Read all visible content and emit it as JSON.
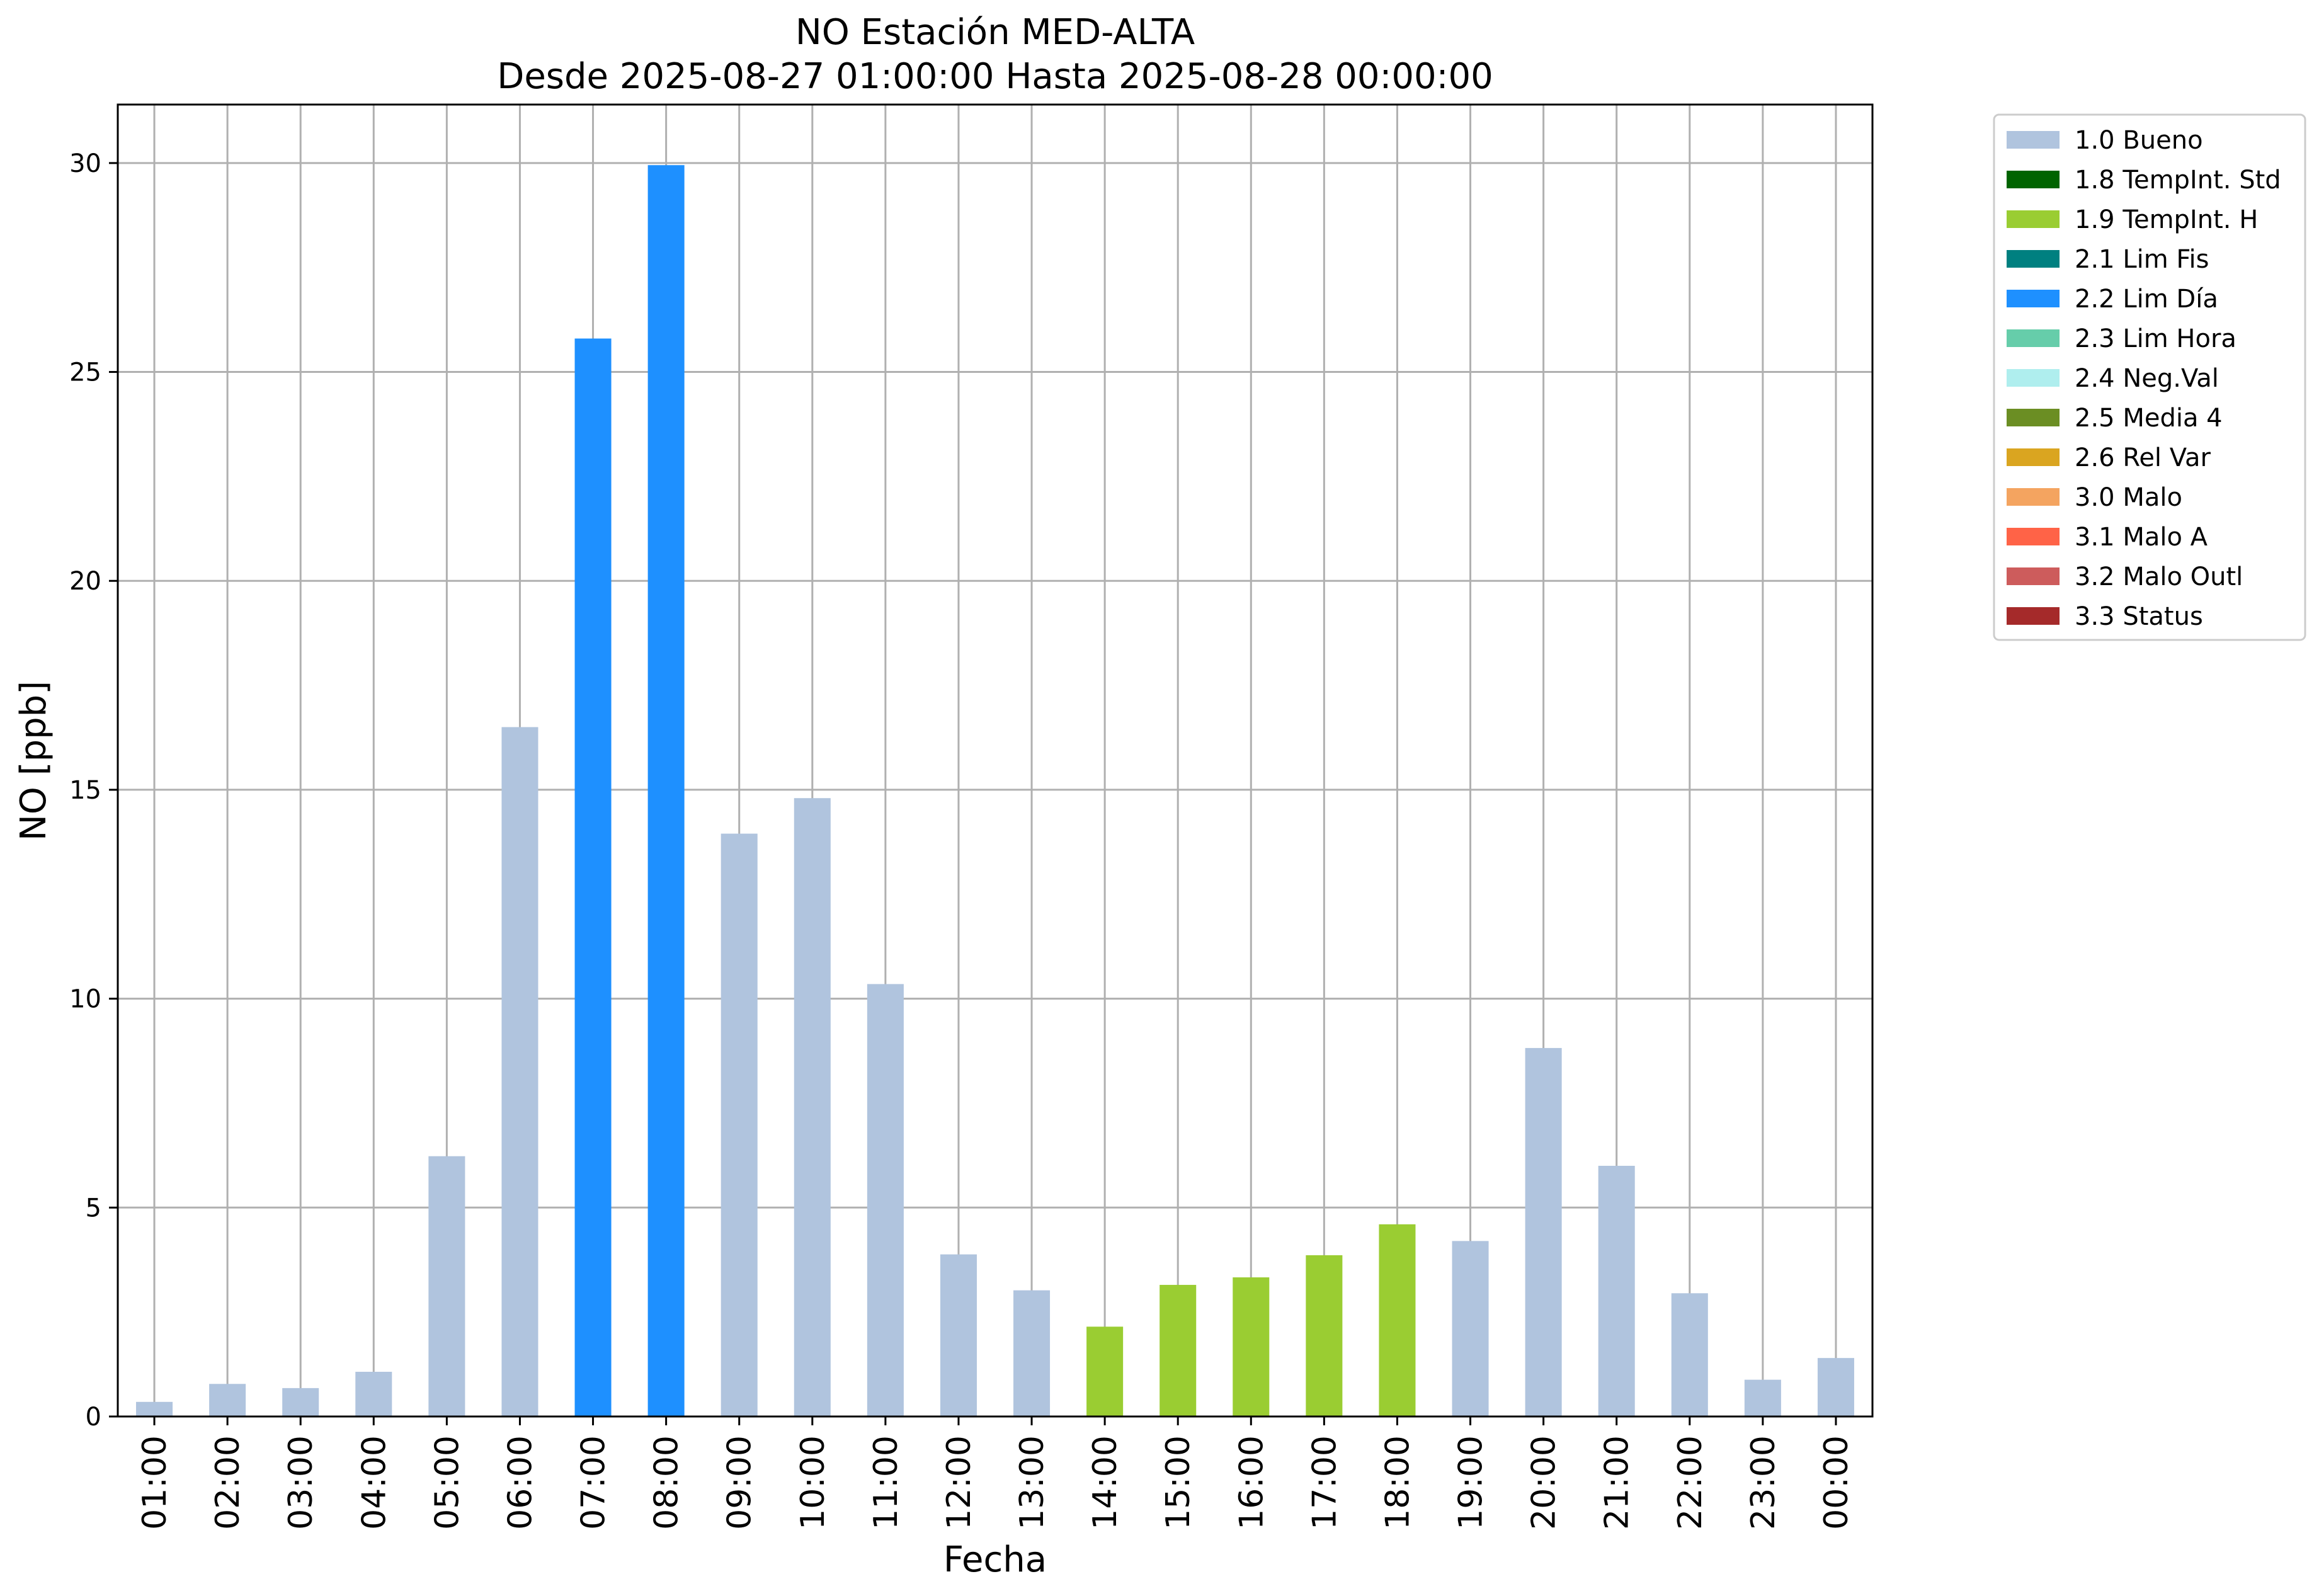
{
  "chart_data": {
    "type": "bar",
    "title_line1": "NO Estación MED-ALTA",
    "title_line2": "Desde 2025-08-27 01:00:00 Hasta 2025-08-28 00:00:00",
    "xlabel": "Fecha",
    "ylabel": "NO [ppb]",
    "ylim": [
      0,
      31.4
    ],
    "yticks": [
      0,
      5,
      10,
      15,
      20,
      25,
      30
    ],
    "grid": true,
    "legend_placement": "upper-right-outside",
    "categories": [
      "01:00",
      "02:00",
      "03:00",
      "04:00",
      "05:00",
      "06:00",
      "07:00",
      "08:00",
      "09:00",
      "10:00",
      "11:00",
      "12:00",
      "13:00",
      "14:00",
      "15:00",
      "16:00",
      "17:00",
      "18:00",
      "19:00",
      "20:00",
      "21:00",
      "22:00",
      "23:00",
      "00:00"
    ],
    "values": [
      0.35,
      0.78,
      0.68,
      1.07,
      6.23,
      16.5,
      25.8,
      29.95,
      13.95,
      14.8,
      10.35,
      3.88,
      3.02,
      2.15,
      3.15,
      3.33,
      3.86,
      4.6,
      4.2,
      8.82,
      6.0,
      2.95,
      0.88,
      1.4
    ],
    "flags": [
      "1.0 Bueno",
      "1.0 Bueno",
      "1.0 Bueno",
      "1.0 Bueno",
      "1.0 Bueno",
      "1.0 Bueno",
      "2.2 Lim Día",
      "2.2 Lim Día",
      "1.0 Bueno",
      "1.0 Bueno",
      "1.0 Bueno",
      "1.0 Bueno",
      "1.0 Bueno",
      "1.9 TempInt. H",
      "1.9 TempInt. H",
      "1.9 TempInt. H",
      "1.9 TempInt. H",
      "1.9 TempInt. H",
      "1.0 Bueno",
      "1.0 Bueno",
      "1.0 Bueno",
      "1.0 Bueno",
      "1.0 Bueno",
      "1.0 Bueno"
    ],
    "legend": [
      {
        "label": "1.0 Bueno",
        "color": "#b0c4de"
      },
      {
        "label": "1.8 TempInt. Std",
        "color": "#006400"
      },
      {
        "label": "1.9 TempInt. H",
        "color": "#9acd32"
      },
      {
        "label": "2.1 Lim Fis",
        "color": "#008080"
      },
      {
        "label": "2.2 Lim Día",
        "color": "#1e90ff"
      },
      {
        "label": "2.3 Lim Hora",
        "color": "#66cdaa"
      },
      {
        "label": "2.4 Neg.Val",
        "color": "#afeeee"
      },
      {
        "label": "2.5 Media 4",
        "color": "#6b8e23"
      },
      {
        "label": "2.6 Rel Var",
        "color": "#daa520"
      },
      {
        "label": "3.0 Malo",
        "color": "#f4a460"
      },
      {
        "label": "3.1 Malo A",
        "color": "#ff6347"
      },
      {
        "label": "3.2 Malo Outl",
        "color": "#cd5c5c"
      },
      {
        "label": "3.3 Status",
        "color": "#a52a2a"
      }
    ]
  }
}
